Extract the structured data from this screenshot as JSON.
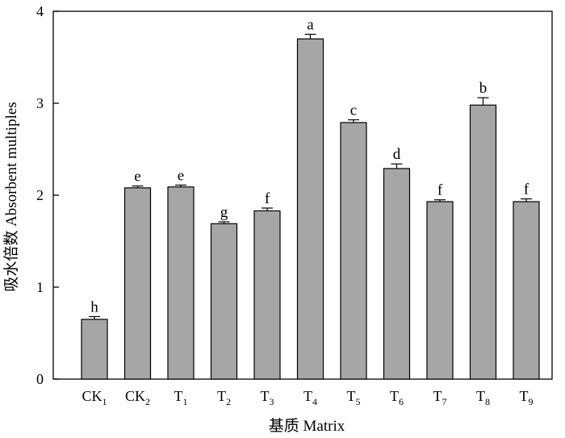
{
  "chart_data": {
    "type": "bar",
    "xlabel": "基质 Matrix",
    "ylabel": "吸水倍数 Absorbent multiples",
    "ylim": [
      0,
      4
    ],
    "yticks": [
      0,
      1,
      2,
      3,
      4
    ],
    "categories": [
      {
        "base": "CK",
        "sub": "1"
      },
      {
        "base": "CK",
        "sub": "2"
      },
      {
        "base": "T",
        "sub": "1"
      },
      {
        "base": "T",
        "sub": "2"
      },
      {
        "base": "T",
        "sub": "3"
      },
      {
        "base": "T",
        "sub": "4"
      },
      {
        "base": "T",
        "sub": "5"
      },
      {
        "base": "T",
        "sub": "6"
      },
      {
        "base": "T",
        "sub": "7"
      },
      {
        "base": "T",
        "sub": "8"
      },
      {
        "base": "T",
        "sub": "9"
      }
    ],
    "values": [
      0.65,
      2.08,
      2.09,
      1.69,
      1.83,
      3.7,
      2.79,
      2.29,
      1.93,
      2.98,
      1.93
    ],
    "errors": [
      0.03,
      0.02,
      0.02,
      0.02,
      0.03,
      0.05,
      0.03,
      0.05,
      0.02,
      0.08,
      0.03
    ],
    "significance": [
      "h",
      "e",
      "e",
      "g",
      "f",
      "a",
      "c",
      "d",
      "f",
      "b",
      "f"
    ],
    "bar_color": "#a6a6a6",
    "grid": false
  }
}
